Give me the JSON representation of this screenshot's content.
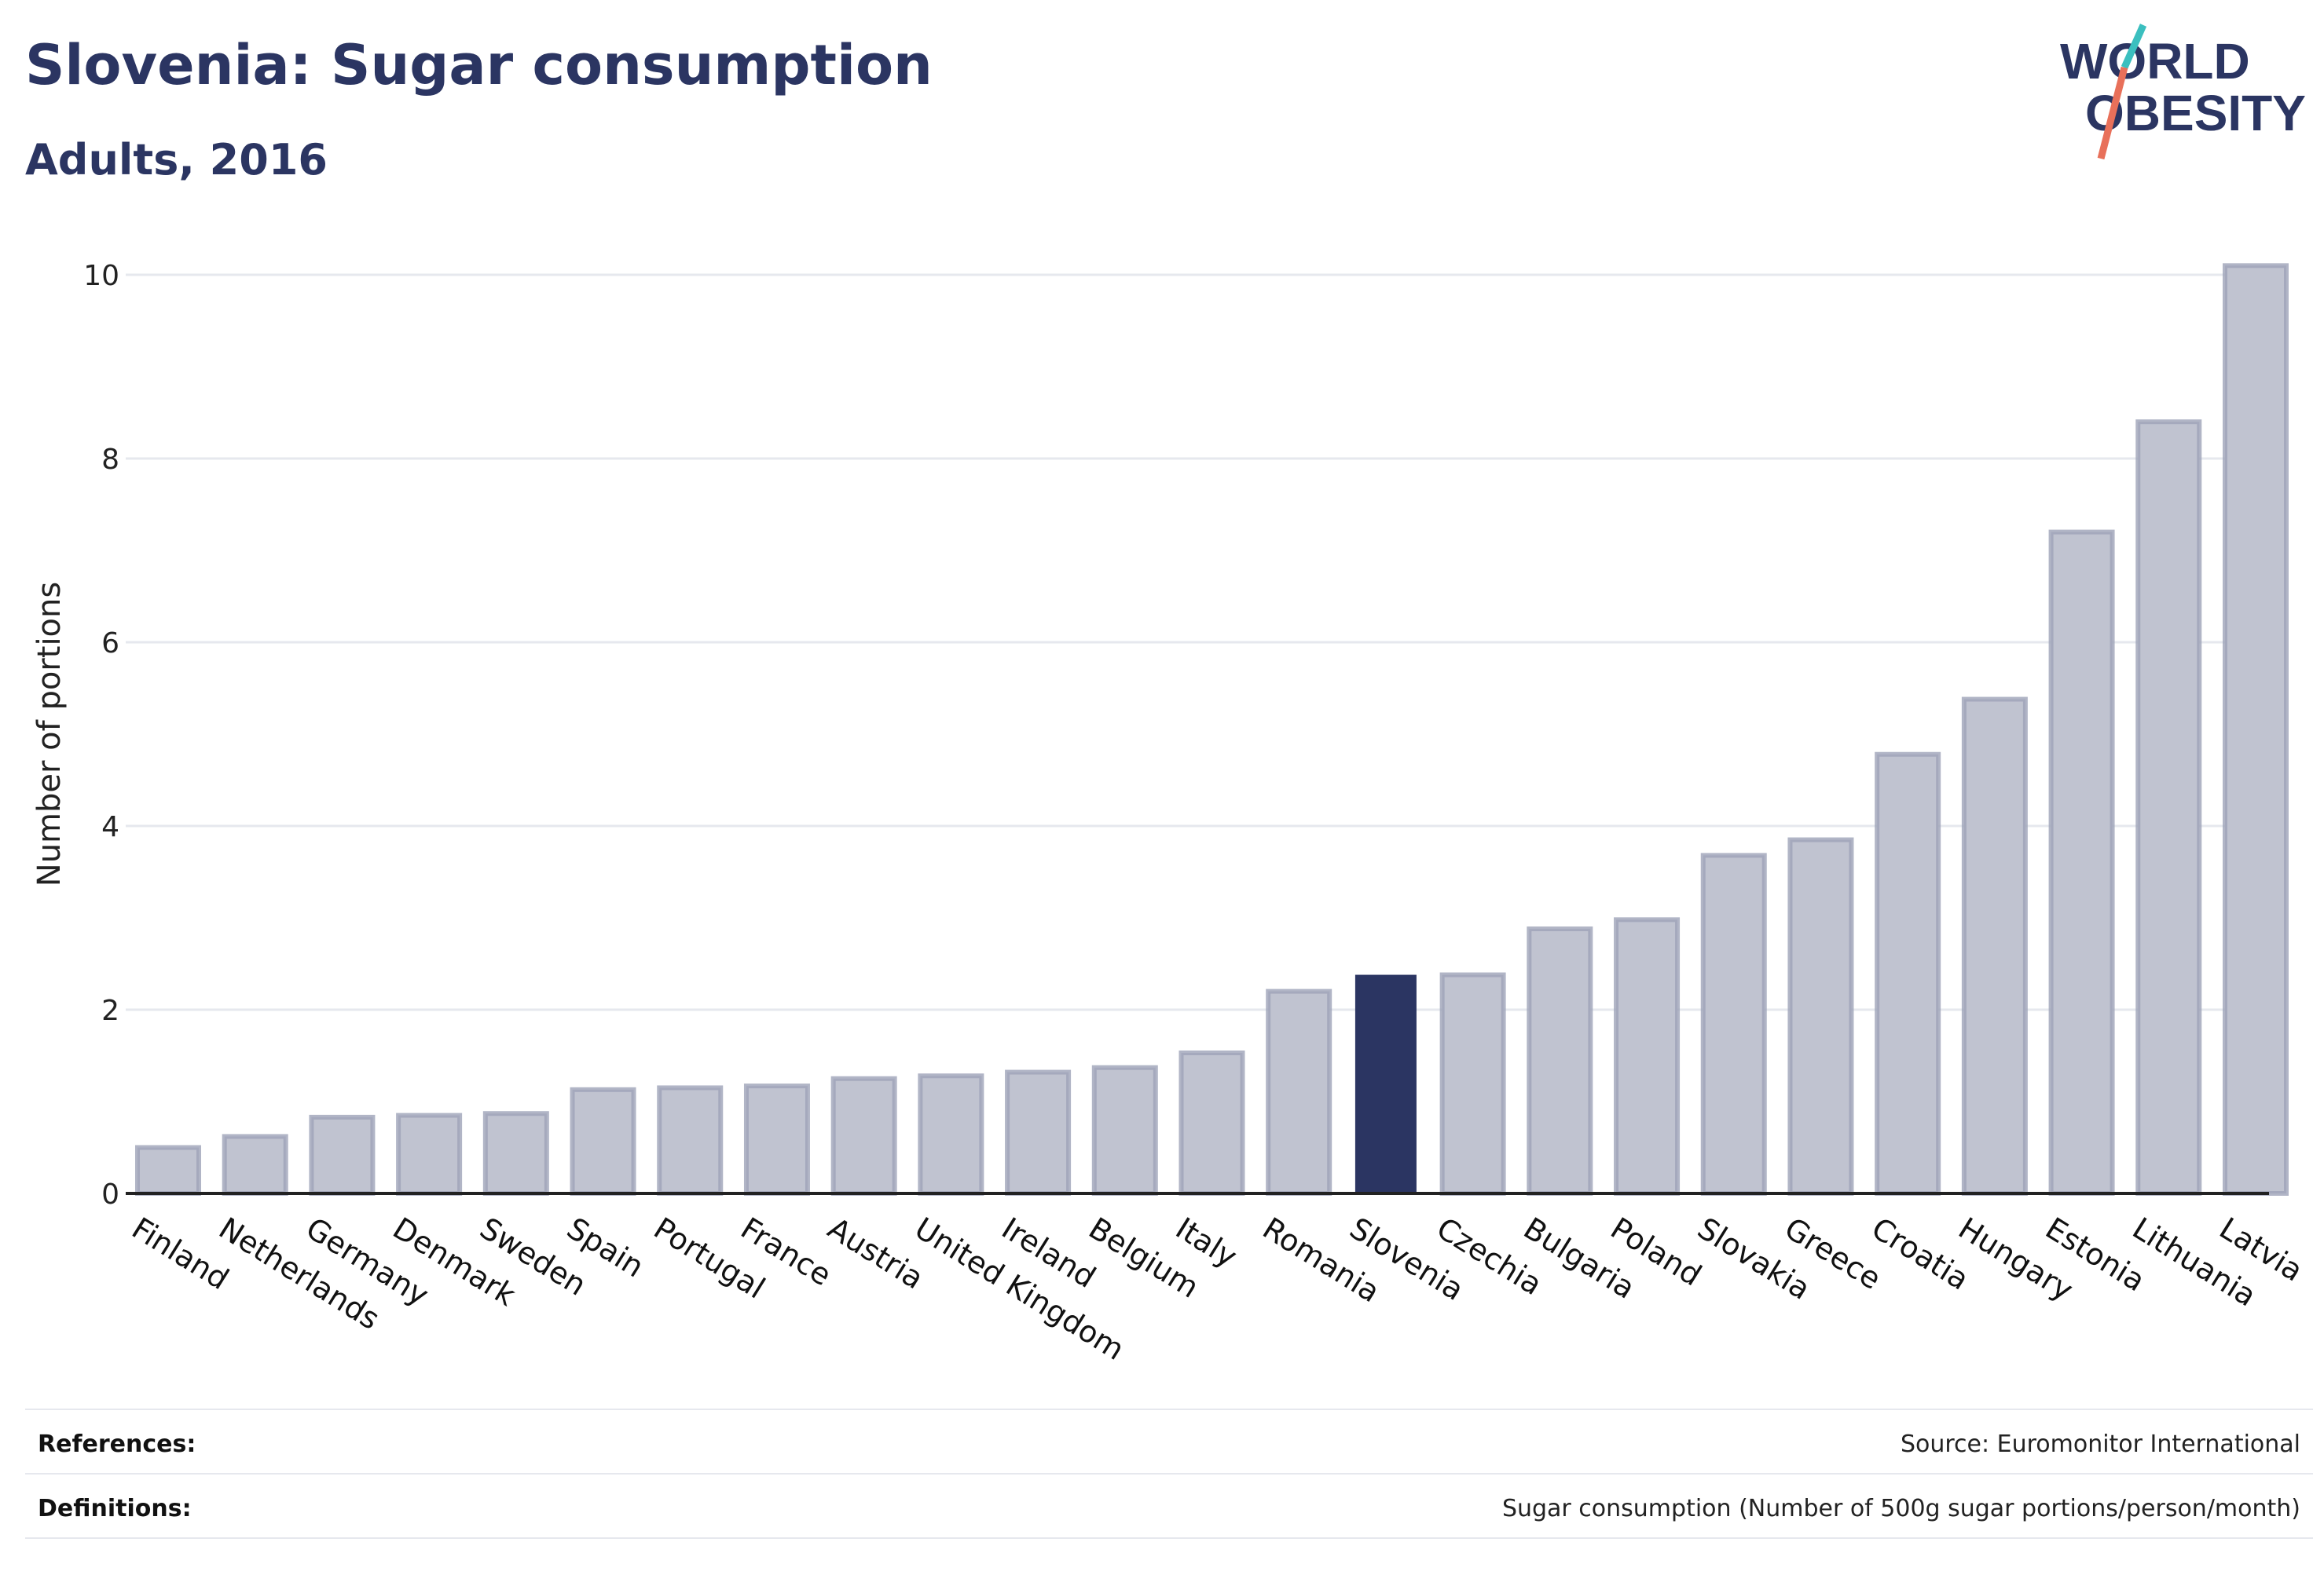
{
  "header": {
    "title": "Slovenia: Sugar consumption",
    "subtitle": "Adults, 2016"
  },
  "logo": {
    "line1": "WORLD",
    "line2": "OBESITY",
    "colors": {
      "text": "#2b3562",
      "slash_top": "#3bbfbf",
      "slash_bottom": "#e8705a"
    }
  },
  "colors": {
    "bar": "#c0c3d0",
    "bar_border": "#9da2b8",
    "highlight": "#2b3562",
    "grid": "#e6e8ee",
    "axis": "#222222",
    "text": "#2b3562"
  },
  "chart_data": {
    "type": "bar",
    "ylabel": "Number of portions",
    "xlabel": "",
    "ylim": [
      0,
      10.3
    ],
    "yticks": [
      0,
      2,
      4,
      6,
      8,
      10
    ],
    "grid": true,
    "highlight": "Slovenia",
    "categories": [
      "Finland",
      "Netherlands",
      "Germany",
      "Denmark",
      "Sweden",
      "Spain",
      "Portugal",
      "France",
      "Austria",
      "United Kingdom",
      "Ireland",
      "Belgium",
      "Italy",
      "Romania",
      "Slovenia",
      "Czechia",
      "Bulgaria",
      "Poland",
      "Slovakia",
      "Greece",
      "Croatia",
      "Hungary",
      "Estonia",
      "Lithuania",
      "Latvia"
    ],
    "values": [
      0.5,
      0.62,
      0.83,
      0.85,
      0.87,
      1.13,
      1.15,
      1.17,
      1.25,
      1.28,
      1.32,
      1.37,
      1.53,
      2.2,
      2.38,
      2.38,
      2.88,
      2.98,
      3.68,
      3.85,
      4.78,
      5.38,
      7.2,
      8.4,
      10.1
    ]
  },
  "footer": {
    "references_label": "References:",
    "references_value": "Source: Euromonitor International",
    "definitions_label": "Definitions:",
    "definitions_value": "Sugar consumption (Number of 500g sugar portions/person/month)"
  }
}
